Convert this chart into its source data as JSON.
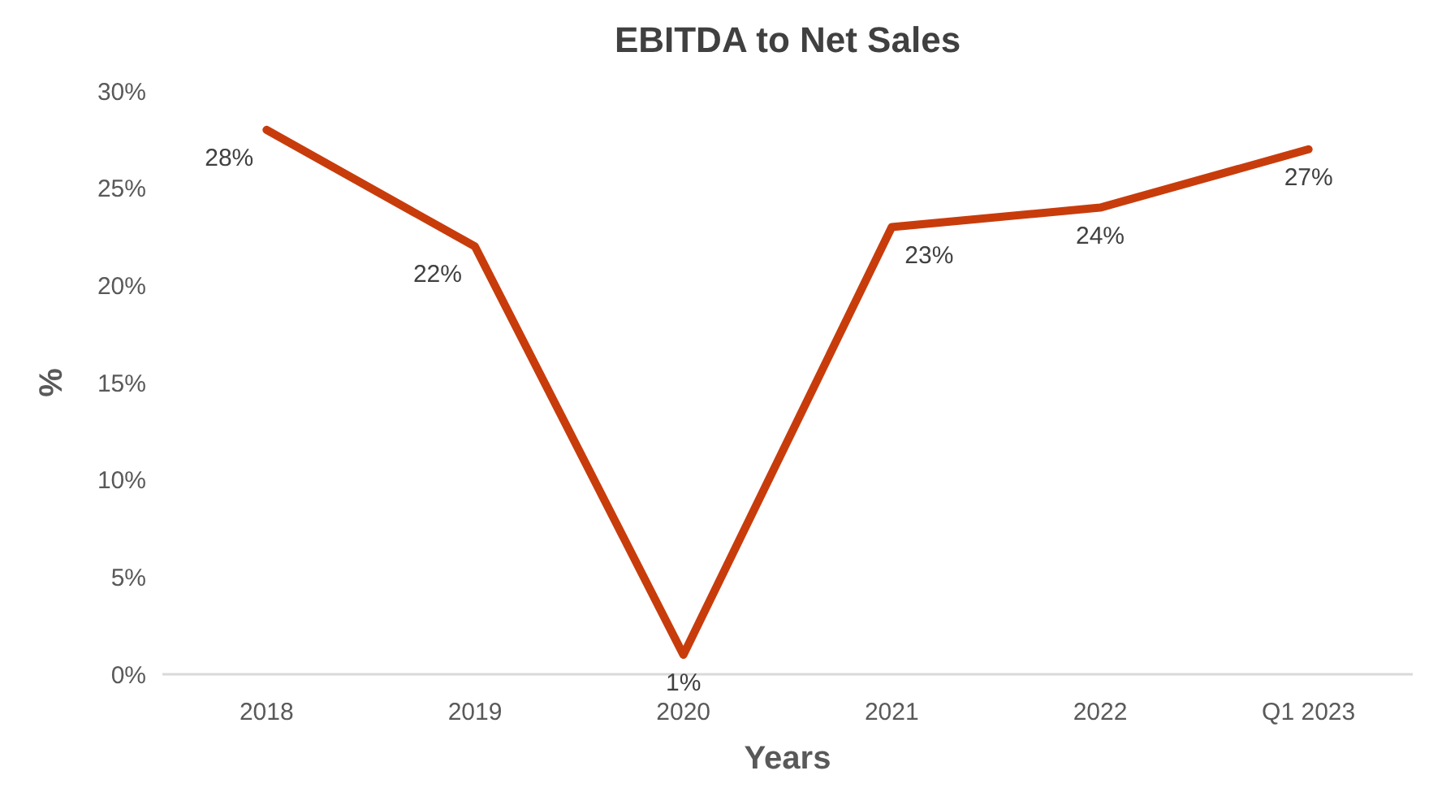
{
  "chart_data": {
    "type": "line",
    "title": "EBITDA to Net Sales",
    "xlabel": "Years",
    "ylabel": "%",
    "categories": [
      "2018",
      "2019",
      "2020",
      "2021",
      "2022",
      "Q1 2023"
    ],
    "series": [
      {
        "color": "#c83c0c",
        "values": [
          28,
          22,
          1,
          23,
          24,
          27
        ],
        "value_labels": [
          "28%",
          "22%",
          "1%",
          "23%",
          "24%",
          "27%"
        ]
      }
    ],
    "ylim": [
      0,
      30
    ],
    "yticks": [
      {
        "value": 0,
        "label": "0%"
      },
      {
        "value": 5,
        "label": "5%"
      },
      {
        "value": 10,
        "label": "10%"
      },
      {
        "value": 15,
        "label": "15%"
      },
      {
        "value": 20,
        "label": "20%"
      },
      {
        "value": 25,
        "label": "25%"
      },
      {
        "value": 30,
        "label": "30%"
      }
    ],
    "grid": false,
    "marker": "none",
    "line_style": "solid"
  }
}
